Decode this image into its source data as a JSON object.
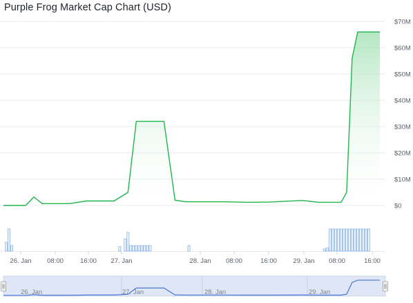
{
  "chart_data": {
    "type": "area",
    "title": "Purple Frog Market Cap Chart (USD)",
    "xlabel": "",
    "ylabel": "",
    "y_axis_position": "right",
    "ylim": [
      0,
      70000000
    ],
    "y_tick_values": [
      0,
      10000000,
      20000000,
      30000000,
      40000000,
      50000000,
      60000000,
      70000000
    ],
    "y_tick_labels": [
      "$0",
      "$10M",
      "$20M",
      "$30M",
      "$40M",
      "$50M",
      "$60M",
      "$70M"
    ],
    "x_tick_labels": [
      "26. Jan",
      "08:00",
      "16:00",
      "27. Jan",
      "28. Jan",
      "08:00",
      "16:00",
      "29. Jan",
      "08:00",
      "16:00"
    ],
    "navigator_tick_labels": [
      "26. Jan",
      "27. Jan",
      "28. Jan",
      "29. Jan"
    ],
    "grid": true,
    "colors": {
      "line": "#1db64a",
      "area_top": "#9adfae",
      "area_bottom": "#ffffff",
      "volume": "#8eb7e8",
      "navigator_fill": "#dfe6f5",
      "navigator_line": "#3a6bd1"
    },
    "series": [
      {
        "type": "area",
        "x": [
          0,
          4,
          5.5,
          7,
          12,
          15,
          20,
          22.5,
          24,
          25.5,
          29,
          31,
          33,
          40,
          44,
          48,
          54,
          57,
          61,
          62,
          63,
          64,
          66,
          68
        ],
        "y": [
          0,
          0,
          3200000,
          700000,
          700000,
          1700000,
          1700000,
          5000000,
          32000000,
          32000000,
          32000000,
          2000000,
          1400000,
          1400000,
          1200000,
          1300000,
          1900000,
          1200000,
          1200000,
          5000000,
          56000000,
          66000000,
          66000000,
          66000000
        ]
      },
      {
        "type": "volume",
        "x": [
          0.5,
          1,
          1.5,
          21,
          22,
          22.5,
          23,
          23.5,
          24,
          24.5,
          25,
          25.5,
          26,
          26.5,
          33.5,
          58,
          58.5,
          59,
          59.5,
          60,
          60.5,
          61,
          61.5,
          62,
          62.5,
          63,
          63.5,
          64,
          64.5,
          65,
          65.5,
          66
        ],
        "y": [
          0.4,
          1.0,
          0.25,
          0.2,
          0.55,
          0.85,
          0.25,
          0.25,
          0.25,
          0.25,
          0.25,
          0.25,
          0.25,
          0.25,
          0.25,
          0.1,
          0.15,
          1.0,
          1.0,
          1.0,
          1.0,
          1.0,
          1.0,
          1.0,
          1.0,
          1.0,
          1.0,
          1.0,
          1.0,
          1.0,
          1.0,
          1.0
        ]
      }
    ]
  }
}
